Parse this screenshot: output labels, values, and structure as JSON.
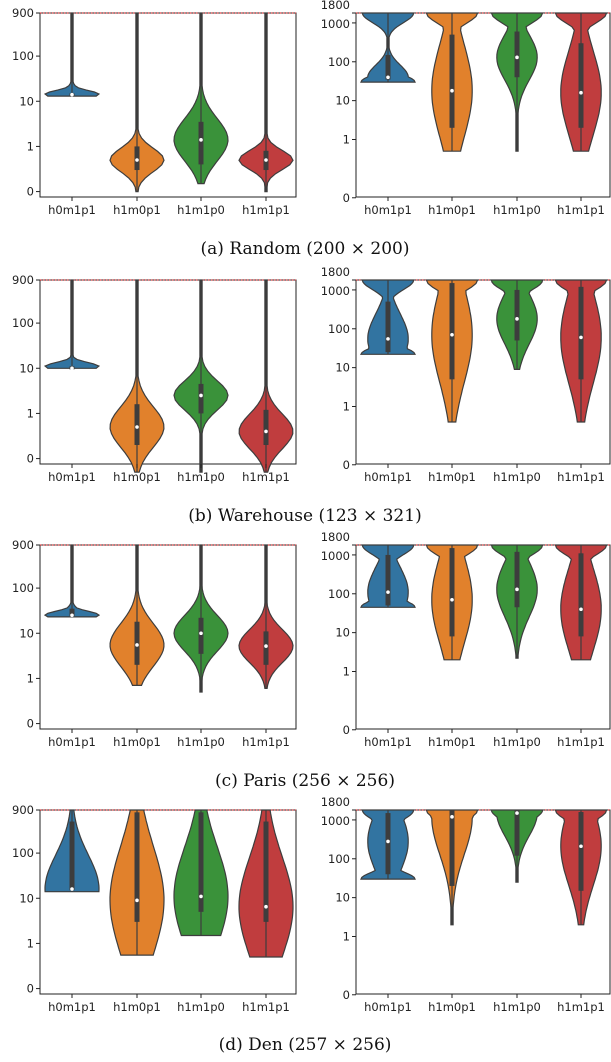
{
  "chart_data": [
    {
      "type": "violin",
      "scale": "log",
      "panel": "random-left",
      "categories": [
        "h0m1p1",
        "h1m0p1",
        "h1m1p0",
        "h1m1p1"
      ],
      "yticks": [
        "0",
        "1",
        "10",
        "100",
        "900"
      ],
      "reference_line": 900,
      "series": [
        {
          "category": "h0m1p1",
          "min": 13,
          "q1": 13,
          "median": 14,
          "q3": 15,
          "max": 900
        },
        {
          "category": "h1m0p1",
          "min": 0.1,
          "q1": 0.3,
          "median": 0.5,
          "q3": 1,
          "max": 900
        },
        {
          "category": "h1m1p0",
          "min": 0.15,
          "q1": 0.4,
          "median": 1.4,
          "q3": 3.5,
          "max": 900
        },
        {
          "category": "h1m1p1",
          "min": 0.1,
          "q1": 0.3,
          "median": 0.5,
          "q3": 0.8,
          "max": 900
        }
      ]
    },
    {
      "type": "violin",
      "scale": "log",
      "panel": "random-right",
      "categories": [
        "h0m1p1",
        "h1m0p1",
        "h1m1p0",
        "h1m1p1"
      ],
      "yticks": [
        "0",
        "1",
        "10",
        "100",
        "1000",
        "1800"
      ],
      "reference_line": 1800,
      "series": [
        {
          "category": "h0m1p1",
          "min": 30,
          "q1": 35,
          "median": 40,
          "q3": 150,
          "max": 1800
        },
        {
          "category": "h1m0p1",
          "min": 0.5,
          "q1": 2,
          "median": 18,
          "q3": 500,
          "max": 1800
        },
        {
          "category": "h1m1p0",
          "min": 0.5,
          "q1": 40,
          "median": 130,
          "q3": 600,
          "max": 1800
        },
        {
          "category": "h1m1p1",
          "min": 0.5,
          "q1": 2,
          "median": 16,
          "q3": 300,
          "max": 1800
        }
      ]
    },
    {
      "type": "violin",
      "scale": "log",
      "panel": "warehouse-left",
      "categories": [
        "h0m1p1",
        "h1m0p1",
        "h1m1p0",
        "h1m1p1"
      ],
      "yticks": [
        "0",
        "1",
        "10",
        "100",
        "900"
      ],
      "reference_line": 900,
      "series": [
        {
          "category": "h0m1p1",
          "min": 10,
          "q1": 10,
          "median": 10,
          "q3": 11,
          "max": 900
        },
        {
          "category": "h1m0p1",
          "min": 0.05,
          "q1": 0.2,
          "median": 0.5,
          "q3": 1.6,
          "max": 900
        },
        {
          "category": "h1m1p0",
          "min": 0.05,
          "q1": 1,
          "median": 2.5,
          "q3": 4.5,
          "max": 900
        },
        {
          "category": "h1m1p1",
          "min": 0.05,
          "q1": 0.2,
          "median": 0.4,
          "q3": 1.2,
          "max": 900
        }
      ]
    },
    {
      "type": "violin",
      "scale": "log",
      "panel": "warehouse-right",
      "categories": [
        "h0m1p1",
        "h1m0p1",
        "h1m1p0",
        "h1m1p1"
      ],
      "yticks": [
        "0",
        "1",
        "10",
        "100",
        "1000",
        "1800"
      ],
      "reference_line": 1800,
      "series": [
        {
          "category": "h0m1p1",
          "min": 22,
          "q1": 25,
          "median": 55,
          "q3": 500,
          "max": 1800
        },
        {
          "category": "h1m0p1",
          "min": 0.4,
          "q1": 5,
          "median": 70,
          "q3": 1500,
          "max": 1800
        },
        {
          "category": "h1m1p0",
          "min": 9,
          "q1": 50,
          "median": 180,
          "q3": 1000,
          "max": 1800
        },
        {
          "category": "h1m1p1",
          "min": 0.4,
          "q1": 5,
          "median": 60,
          "q3": 1200,
          "max": 1800
        }
      ]
    },
    {
      "type": "violin",
      "scale": "log",
      "panel": "paris-left",
      "categories": [
        "h0m1p1",
        "h1m0p1",
        "h1m1p0",
        "h1m1p1"
      ],
      "yticks": [
        "0",
        "1",
        "10",
        "100",
        "900"
      ],
      "reference_line": 900,
      "series": [
        {
          "category": "h0m1p1",
          "min": 23,
          "q1": 24,
          "median": 25,
          "q3": 35,
          "max": 900
        },
        {
          "category": "h1m0p1",
          "min": 0.7,
          "q1": 2,
          "median": 5.5,
          "q3": 18,
          "max": 900
        },
        {
          "category": "h1m1p0",
          "min": 0.5,
          "q1": 3.5,
          "median": 10,
          "q3": 22,
          "max": 900
        },
        {
          "category": "h1m1p1",
          "min": 0.6,
          "q1": 2,
          "median": 5.2,
          "q3": 11,
          "max": 900
        }
      ]
    },
    {
      "type": "violin",
      "scale": "log",
      "panel": "paris-right",
      "categories": [
        "h0m1p1",
        "h1m0p1",
        "h1m1p0",
        "h1m1p1"
      ],
      "yticks": [
        "0",
        "1",
        "10",
        "100",
        "1000",
        "1800"
      ],
      "reference_line": 1800,
      "series": [
        {
          "category": "h0m1p1",
          "min": 45,
          "q1": 50,
          "median": 110,
          "q3": 1000,
          "max": 1800
        },
        {
          "category": "h1m0p1",
          "min": 2,
          "q1": 8,
          "median": 70,
          "q3": 1500,
          "max": 1800
        },
        {
          "category": "h1m1p0",
          "min": 2.2,
          "q1": 45,
          "median": 130,
          "q3": 1200,
          "max": 1800
        },
        {
          "category": "h1m1p1",
          "min": 2,
          "q1": 8,
          "median": 40,
          "q3": 1100,
          "max": 1800
        }
      ]
    },
    {
      "type": "violin",
      "scale": "log",
      "panel": "den-left",
      "categories": [
        "h0m1p1",
        "h1m0p1",
        "h1m1p0",
        "h1m1p1"
      ],
      "yticks": [
        "0",
        "1",
        "10",
        "100",
        "900"
      ],
      "reference_line": 900,
      "series": [
        {
          "category": "h0m1p1",
          "min": 14,
          "q1": 15,
          "median": 16,
          "q3": 500,
          "max": 900
        },
        {
          "category": "h1m0p1",
          "min": 0.55,
          "q1": 3,
          "median": 9,
          "q3": 800,
          "max": 900
        },
        {
          "category": "h1m1p0",
          "min": 1.5,
          "q1": 5,
          "median": 11,
          "q3": 800,
          "max": 900
        },
        {
          "category": "h1m1p1",
          "min": 0.5,
          "q1": 3,
          "median": 6.5,
          "q3": 500,
          "max": 900
        }
      ]
    },
    {
      "type": "violin",
      "scale": "log",
      "panel": "den-right",
      "categories": [
        "h0m1p1",
        "h1m0p1",
        "h1m1p0",
        "h1m1p1"
      ],
      "yticks": [
        "0",
        "1",
        "10",
        "100",
        "1000",
        "1800"
      ],
      "reference_line": 1800,
      "series": [
        {
          "category": "h0m1p1",
          "min": 30,
          "q1": 40,
          "median": 280,
          "q3": 1500,
          "max": 1800
        },
        {
          "category": "h1m0p1",
          "min": 2,
          "q1": 20,
          "median": 1200,
          "q3": 1800,
          "max": 1800
        },
        {
          "category": "h1m1p0",
          "min": 25,
          "q1": 120,
          "median": 1500,
          "q3": 1800,
          "max": 1800
        },
        {
          "category": "h1m1p1",
          "min": 2,
          "q1": 15,
          "median": 210,
          "q3": 1600,
          "max": 1800
        }
      ]
    }
  ],
  "colors": [
    "#3274a1",
    "#e1812c",
    "#3a923a",
    "#c03d3e"
  ],
  "captions": [
    "(a) Random (200 × 200)",
    "(b) Warehouse (123 × 321)",
    "(c) Paris (256 × 256)",
    "(d) Den (257 × 256)"
  ]
}
